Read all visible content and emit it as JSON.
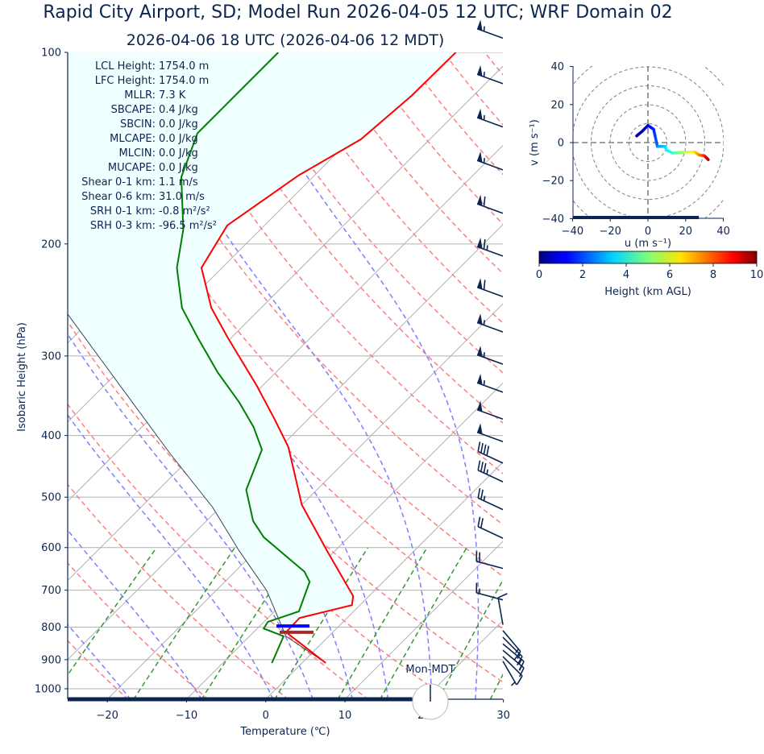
{
  "title": "Rapid City Airport, SD; Model Run 2026-04-05 12 UTC; WRF Domain 02",
  "subtitle": "2026-04-06 18 UTC  (2026-04-06 12 MDT)",
  "stats": [
    {
      "label": "LCL Height:",
      "value": "1754.0 m"
    },
    {
      "label": "LFC Height:",
      "value": "1754.0 m"
    },
    {
      "label": "MLLR:",
      "value": "7.3 K"
    },
    {
      "label": "SBCAPE:",
      "value": "0.4 J/kg"
    },
    {
      "label": "SBCIN:",
      "value": "0.0 J/kg"
    },
    {
      "label": "MLCAPE:",
      "value": "0.0 J/kg"
    },
    {
      "label": "MLCIN:",
      "value": "0.0 J/kg"
    },
    {
      "label": "MUCAPE:",
      "value": "0.0 J/kg"
    },
    {
      "label": "Shear 0-1 km:",
      "value": "1.1 m/s"
    },
    {
      "label": "Shear 0-6 km:",
      "value": "31.0 m/s"
    },
    {
      "label": "SRH 0-1 km:",
      "value": "-0.8 m²/s²"
    },
    {
      "label": "SRH 0-3 km:",
      "value": "-96.5 m²/s²"
    }
  ],
  "clock": {
    "label": "Mon-MDT",
    "icon": "clock-icon"
  },
  "chart_data": [
    {
      "type": "line",
      "subtype": "skew-t log-p",
      "xlabel": "Temperature (℃)",
      "ylabel": "Isobaric Height (hPa)",
      "xlim": [
        -25,
        30
      ],
      "ylim": [
        1040,
        100
      ],
      "yscale": "log",
      "xticks": [
        "−20",
        "−10",
        "0",
        "10",
        "20",
        "30"
      ],
      "xtick_values": [
        -20,
        -10,
        0,
        10,
        20,
        30
      ],
      "yticks": [
        "100",
        "200",
        "300",
        "400",
        "500",
        "600",
        "700",
        "800",
        "900",
        "1000"
      ],
      "ytick_values": [
        100,
        200,
        300,
        400,
        500,
        600,
        700,
        800,
        900,
        1000
      ],
      "grid": true,
      "colors": {
        "temperature": "#ff0000",
        "dewpoint": "#008000",
        "parcel": "#334455",
        "cape_shading": "#f0ffff",
        "dry_adiabat": "#ff7f7f",
        "moist_adiabat": "#7f7fff",
        "mixing_ratio": "#339933",
        "lcl_marker": "#0000ff",
        "sfc_marker": "#a52a2a",
        "barbs": "#0b2550"
      },
      "dry_adiabats_theta_K": [
        243,
        253,
        263,
        273,
        283,
        293,
        303,
        313,
        323,
        333,
        343,
        353,
        363,
        373,
        383,
        393,
        403,
        413,
        423,
        433,
        443,
        453,
        463,
        473
      ],
      "moist_adiabats_T_at_1040hPa_C": [
        -17,
        -8,
        1,
        6,
        11,
        15.5,
        21,
        26.5
      ],
      "mixing_ratio_lines_g_per_kg": [
        0.4,
        1,
        2,
        4,
        7,
        10,
        16,
        24,
        32
      ],
      "temperature": {
        "p": [
          911,
          815,
          774,
          739,
          715,
          606,
          514,
          417,
          376,
          333,
          281,
          252,
          218,
          187,
          156,
          137,
          117,
          100
        ],
        "T": [
          3.0,
          -5.9,
          -6.0,
          -1.0,
          -2.0,
          -11.1,
          -20.0,
          -29.0,
          -34.4,
          -40.9,
          -50.4,
          -56.3,
          -62.6,
          -64.7,
          -62.0,
          -58.7,
          -57.8,
          -57.7
        ]
      },
      "dewpoint": {
        "p": [
          911,
          827,
          804,
          785,
          756,
          679,
          655,
          578,
          545,
          487,
          421,
          388,
          355,
          318,
          281,
          252,
          218,
          190,
          157,
          134,
          121,
          100
        ],
        "Td": [
          -3.8,
          -5.7,
          -9.2,
          -9.5,
          -6.9,
          -9.3,
          -11.2,
          -20.7,
          -24.1,
          -28.9,
          -32.0,
          -35.9,
          -40.8,
          -47.4,
          -54.2,
          -60.0,
          -65.7,
          -69.7,
          -76.6,
          -80.1,
          -80.1,
          -80.1
        ]
      },
      "parcel": {
        "p": [
          911,
          827,
          701,
          606,
          519,
          427,
          335,
          258
        ],
        "T": [
          3.0,
          -5.4,
          -13.6,
          -22.2,
          -30.9,
          -43.1,
          -57.8,
          -73.6
        ]
      },
      "lcl_marker_hPa": 797,
      "sfc_marker_hPa": 815,
      "bottom_bar_end_C": 18.5,
      "wind_barbs": [
        {
          "p": 95,
          "dir": 290,
          "kt": 55
        },
        {
          "p": 112,
          "dir": 290,
          "kt": 55
        },
        {
          "p": 131,
          "dir": 290,
          "kt": 55
        },
        {
          "p": 153,
          "dir": 290,
          "kt": 55
        },
        {
          "p": 179,
          "dir": 290,
          "kt": 60
        },
        {
          "p": 209,
          "dir": 290,
          "kt": 65
        },
        {
          "p": 242,
          "dir": 290,
          "kt": 60
        },
        {
          "p": 275,
          "dir": 290,
          "kt": 55
        },
        {
          "p": 309,
          "dir": 290,
          "kt": 55
        },
        {
          "p": 342,
          "dir": 290,
          "kt": 55
        },
        {
          "p": 377,
          "dir": 290,
          "kt": 50
        },
        {
          "p": 409,
          "dir": 290,
          "kt": 50
        },
        {
          "p": 442,
          "dir": 295,
          "kt": 40
        },
        {
          "p": 473,
          "dir": 295,
          "kt": 35
        },
        {
          "p": 523,
          "dir": 295,
          "kt": 25
        },
        {
          "p": 580,
          "dir": 295,
          "kt": 20
        },
        {
          "p": 647,
          "dir": 285,
          "kt": 20
        },
        {
          "p": 725,
          "dir": 285,
          "kt": 15
        },
        {
          "p": 793,
          "dir": 350,
          "kt": 10
        },
        {
          "p": 810,
          "dir": 140,
          "kt": 15
        },
        {
          "p": 830,
          "dir": 135,
          "kt": 15
        },
        {
          "p": 850,
          "dir": 130,
          "kt": 15
        },
        {
          "p": 870,
          "dir": 130,
          "kt": 15
        },
        {
          "p": 890,
          "dir": 135,
          "kt": 10
        },
        {
          "p": 905,
          "dir": 150,
          "kt": 5
        }
      ]
    },
    {
      "type": "line",
      "subtype": "hodograph",
      "xlabel": "u (m s⁻¹)",
      "ylabel": "v (m s⁻¹)",
      "xlim": [
        -40,
        40
      ],
      "ylim": [
        -40,
        40
      ],
      "xticks": [
        "−40",
        "−20",
        "0",
        "20",
        "40"
      ],
      "yticks": [
        "40",
        "20",
        "0",
        "−20",
        "−40"
      ],
      "tick_values": [
        -40,
        -20,
        0,
        20,
        40
      ],
      "range_rings_m_s": [
        10,
        20,
        30,
        40,
        50
      ],
      "bottom_bar_end_u": 27,
      "u": [
        -6,
        -3,
        0,
        3,
        5,
        6,
        9,
        10,
        13,
        20,
        25,
        27,
        30,
        32
      ],
      "v": [
        3.5,
        6,
        9,
        7,
        -2,
        -2,
        -2,
        -4,
        -5.5,
        -5,
        -5,
        -6.5,
        -7,
        -9
      ],
      "height_km": [
        0.3,
        0.6,
        1.0,
        1.5,
        2.3,
        2.8,
        3.2,
        3.7,
        4.2,
        5.5,
        6.5,
        7.3,
        8.3,
        9.5
      ],
      "colorbar": {
        "label": "Height (km AGL)",
        "ticks": [
          "0",
          "2",
          "4",
          "6",
          "8",
          "10"
        ],
        "tick_values": [
          0,
          2,
          4,
          6,
          8,
          10
        ],
        "range": [
          0,
          10
        ],
        "colormap": "jet"
      }
    }
  ]
}
